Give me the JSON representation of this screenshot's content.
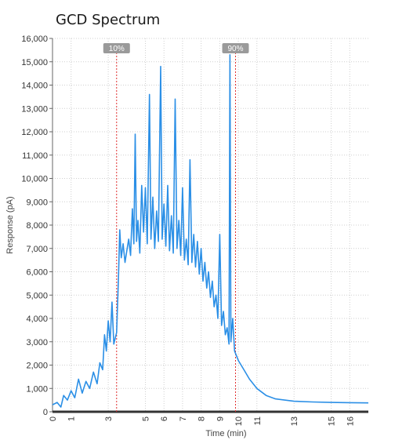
{
  "chart_data": {
    "type": "line",
    "title": "GCD Spectrum",
    "xlabel": "Time (min)",
    "ylabel": "Response (pA)",
    "xlim": [
      0,
      17
    ],
    "ylim": [
      0,
      16000
    ],
    "grid": true,
    "x_ticks": [
      0,
      1,
      3,
      5,
      6,
      7,
      8,
      9,
      10,
      11,
      13,
      15,
      16
    ],
    "x_tick_labels": [
      "0",
      "1",
      "3",
      "5",
      "6",
      "7",
      "8",
      "9",
      "10",
      "11",
      "13",
      "15",
      "16"
    ],
    "y_ticks": [
      0,
      1000,
      2000,
      3000,
      4000,
      5000,
      6000,
      7000,
      8000,
      9000,
      10000,
      11000,
      12000,
      13000,
      14000,
      15000,
      16000
    ],
    "y_tick_labels": [
      "0",
      "1,000",
      "2,000",
      "3,000",
      "4,000",
      "5,000",
      "6,000",
      "7,000",
      "8,000",
      "9,000",
      "10,000",
      "11,000",
      "12,000",
      "13,000",
      "14,000",
      "15,000",
      "16,000"
    ],
    "markers": [
      {
        "label": "10%",
        "x": 3.45,
        "color": "#e03030"
      },
      {
        "label": "90%",
        "x": 9.85,
        "color": "#e03030"
      }
    ],
    "series": [
      {
        "color": "#2b8fe6",
        "points": [
          [
            0.0,
            300
          ],
          [
            0.25,
            400
          ],
          [
            0.45,
            200
          ],
          [
            0.6,
            700
          ],
          [
            0.8,
            500
          ],
          [
            1.0,
            900
          ],
          [
            1.2,
            600
          ],
          [
            1.4,
            1400
          ],
          [
            1.6,
            800
          ],
          [
            1.8,
            1300
          ],
          [
            2.0,
            1000
          ],
          [
            2.2,
            1700
          ],
          [
            2.4,
            1200
          ],
          [
            2.55,
            2100
          ],
          [
            2.7,
            1800
          ],
          [
            2.8,
            3300
          ],
          [
            2.9,
            2600
          ],
          [
            3.0,
            3900
          ],
          [
            3.1,
            3000
          ],
          [
            3.2,
            4700
          ],
          [
            3.3,
            2900
          ],
          [
            3.45,
            3400
          ],
          [
            3.55,
            5800
          ],
          [
            3.62,
            7800
          ],
          [
            3.7,
            6600
          ],
          [
            3.8,
            7200
          ],
          [
            3.9,
            6400
          ],
          [
            4.0,
            6900
          ],
          [
            4.1,
            7400
          ],
          [
            4.2,
            6700
          ],
          [
            4.3,
            8700
          ],
          [
            4.38,
            7200
          ],
          [
            4.45,
            11900
          ],
          [
            4.52,
            7300
          ],
          [
            4.6,
            8200
          ],
          [
            4.7,
            6800
          ],
          [
            4.8,
            9700
          ],
          [
            4.9,
            7700
          ],
          [
            5.0,
            9600
          ],
          [
            5.1,
            7200
          ],
          [
            5.22,
            13600
          ],
          [
            5.3,
            7400
          ],
          [
            5.4,
            9200
          ],
          [
            5.5,
            7000
          ],
          [
            5.6,
            8600
          ],
          [
            5.7,
            7300
          ],
          [
            5.82,
            14800
          ],
          [
            5.9,
            7400
          ],
          [
            6.0,
            8900
          ],
          [
            6.1,
            7100
          ],
          [
            6.2,
            9700
          ],
          [
            6.3,
            6900
          ],
          [
            6.4,
            8400
          ],
          [
            6.5,
            6800
          ],
          [
            6.6,
            13400
          ],
          [
            6.7,
            7000
          ],
          [
            6.8,
            8200
          ],
          [
            6.9,
            6700
          ],
          [
            7.0,
            9600
          ],
          [
            7.1,
            6500
          ],
          [
            7.2,
            7400
          ],
          [
            7.3,
            6300
          ],
          [
            7.4,
            10800
          ],
          [
            7.5,
            6400
          ],
          [
            7.6,
            7600
          ],
          [
            7.7,
            6200
          ],
          [
            7.8,
            7300
          ],
          [
            7.9,
            5900
          ],
          [
            8.0,
            7000
          ],
          [
            8.1,
            5600
          ],
          [
            8.2,
            6400
          ],
          [
            8.3,
            5300
          ],
          [
            8.4,
            6000
          ],
          [
            8.5,
            4900
          ],
          [
            8.6,
            5600
          ],
          [
            8.7,
            4500
          ],
          [
            8.8,
            5000
          ],
          [
            8.9,
            4000
          ],
          [
            9.0,
            7600
          ],
          [
            9.1,
            3700
          ],
          [
            9.2,
            4300
          ],
          [
            9.3,
            3300
          ],
          [
            9.4,
            3600
          ],
          [
            9.5,
            2900
          ],
          [
            9.55,
            15300
          ],
          [
            9.6,
            3000
          ],
          [
            9.7,
            4000
          ],
          [
            9.8,
            2600
          ],
          [
            9.9,
            2400
          ],
          [
            10.0,
            2200
          ],
          [
            10.3,
            1800
          ],
          [
            10.6,
            1400
          ],
          [
            11.0,
            1000
          ],
          [
            11.5,
            700
          ],
          [
            12.0,
            550
          ],
          [
            13.0,
            450
          ],
          [
            14.0,
            420
          ],
          [
            15.0,
            400
          ],
          [
            16.0,
            390
          ],
          [
            17.0,
            380
          ]
        ]
      }
    ]
  }
}
